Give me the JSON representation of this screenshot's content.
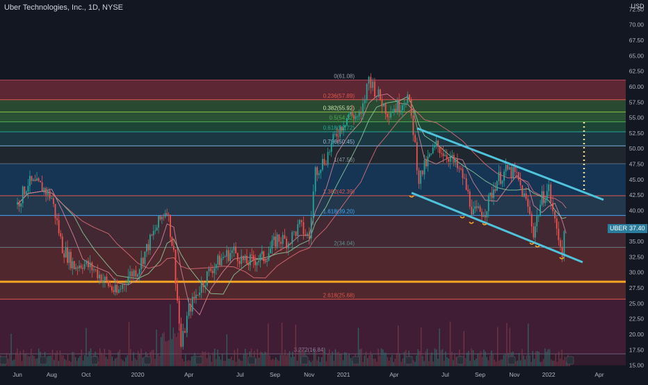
{
  "header": {
    "title": "Uber Technologies, Inc., 1D, NYSE",
    "currency": "USD"
  },
  "last_price": {
    "symbol": "UBER",
    "value": "37.40"
  },
  "colors": {
    "background": "#131722",
    "candle_up": "#26a69a",
    "candle_down": "#ef5350",
    "channel": "#4fc3dc",
    "support": "#f5a623"
  },
  "chart_data": {
    "type": "candlestick",
    "y_axis": {
      "ylim": [
        15.0,
        75.0
      ],
      "ticks": [
        "15.00",
        "17.50",
        "20.00",
        "22.50",
        "25.00",
        "27.50",
        "30.00",
        "32.50",
        "35.00",
        "37.50",
        "40.00",
        "42.50",
        "45.00",
        "47.50",
        "50.00",
        "52.50",
        "55.00",
        "57.50",
        "60.00",
        "62.50",
        "65.00",
        "67.50",
        "70.00",
        "72.50"
      ]
    },
    "x_axis": {
      "ticks": [
        {
          "label": "Jun",
          "date": "2019-06-01"
        },
        {
          "label": "Aug",
          "date": "2019-08-01"
        },
        {
          "label": "Oct",
          "date": "2019-10-01"
        },
        {
          "label": "2020",
          "date": "2020-01-01"
        },
        {
          "label": "Apr",
          "date": "2020-04-01"
        },
        {
          "label": "Jul",
          "date": "2020-07-01"
        },
        {
          "label": "Sep",
          "date": "2020-09-01"
        },
        {
          "label": "Nov",
          "date": "2020-11-01"
        },
        {
          "label": "2021",
          "date": "2021-01-01"
        },
        {
          "label": "Apr",
          "date": "2021-04-01"
        },
        {
          "label": "Jul",
          "date": "2021-07-01"
        },
        {
          "label": "Sep",
          "date": "2021-09-01"
        },
        {
          "label": "Nov",
          "date": "2021-11-01"
        },
        {
          "label": "2022",
          "date": "2022-01-01"
        },
        {
          "label": "Apr",
          "date": "2022-04-01"
        }
      ]
    },
    "fib_levels": [
      {
        "label": "0(61.08)",
        "value": 61.08,
        "line": "#b2455a",
        "fill": "#6b2a36",
        "label_color": "#9aa0ac"
      },
      {
        "label": "0.236(57.89)",
        "value": 57.89,
        "line": "#e0584d",
        "fill": "#2e5233",
        "label_color": "#e0584d"
      },
      {
        "label": "0.382(55.92)",
        "value": 55.92,
        "line": "#8bc34a",
        "fill": "#2f5b38",
        "label_color": "#cfe8b0"
      },
      {
        "label": "0.5(54.32)",
        "value": 54.32,
        "line": "#4caf50",
        "fill": "#1f4d3a",
        "label_color": "#4caf50"
      },
      {
        "label": "0.618(52.72)",
        "value": 52.72,
        "line": "#26a69a",
        "fill": "#1d3d46",
        "label_color": "#26a69a"
      },
      {
        "label": "0.786(50.45)",
        "value": 50.45,
        "line": "#7fb0e0",
        "fill": "#22292f",
        "label_color": "#9ab8da"
      },
      {
        "label": "1(47.56)",
        "value": 47.56,
        "line": "#5f6b7a",
        "fill": "#173a5c",
        "label_color": "#8a93a3"
      },
      {
        "label": "1.382(42.39)",
        "value": 42.39,
        "line": "#e0584d",
        "fill": "#283e55",
        "label_color": "#e0584d"
      },
      {
        "label": "1.618(39.20)",
        "value": 39.2,
        "line": "#42a5f5",
        "fill": "#4a2b35",
        "label_color": "#42a5f5"
      },
      {
        "label": "2(34.04)",
        "value": 34.04,
        "line": "#6a7a82",
        "fill": "#5c2a2e",
        "label_color": "#5f8f8a"
      },
      {
        "label": "2.618(25.68)",
        "value": 25.68,
        "line": "#e0584d",
        "fill": "#4a1f38",
        "label_color": "#e0584d"
      },
      {
        "label": "3.272(16.84)",
        "value": 16.84,
        "line": "#6a5a7a",
        "fill": "#3a1c30",
        "label_color": "#8a7a9a"
      }
    ],
    "support_line": {
      "value": 28.5
    },
    "series": [
      {
        "name": "price",
        "points": [
          [
            "2019-06-01",
            41.0
          ],
          [
            "2019-06-20",
            44.5
          ],
          [
            "2019-07-15",
            43.8
          ],
          [
            "2019-08-01",
            42.0
          ],
          [
            "2019-08-20",
            34.0
          ],
          [
            "2019-09-10",
            31.0
          ],
          [
            "2019-09-25",
            31.5
          ],
          [
            "2019-10-15",
            30.5
          ],
          [
            "2019-11-10",
            28.0
          ],
          [
            "2019-11-25",
            26.5
          ],
          [
            "2019-12-15",
            29.5
          ],
          [
            "2020-01-01",
            30.5
          ],
          [
            "2020-01-20",
            34.5
          ],
          [
            "2020-02-10",
            38.5
          ],
          [
            "2020-02-22",
            40.5
          ],
          [
            "2020-03-05",
            33.0
          ],
          [
            "2020-03-18",
            18.0
          ],
          [
            "2020-04-01",
            24.0
          ],
          [
            "2020-04-20",
            27.5
          ],
          [
            "2020-05-10",
            30.5
          ],
          [
            "2020-06-01",
            32.5
          ],
          [
            "2020-06-20",
            33.5
          ],
          [
            "2020-07-10",
            31.5
          ],
          [
            "2020-07-25",
            32.0
          ],
          [
            "2020-08-15",
            32.5
          ],
          [
            "2020-09-05",
            35.5
          ],
          [
            "2020-09-25",
            35.0
          ],
          [
            "2020-10-15",
            37.5
          ],
          [
            "2020-11-01",
            35.5
          ],
          [
            "2020-11-12",
            46.5
          ],
          [
            "2020-12-01",
            48.5
          ],
          [
            "2020-12-20",
            52.5
          ],
          [
            "2021-01-10",
            55.5
          ],
          [
            "2021-02-01",
            55.0
          ],
          [
            "2021-02-15",
            61.5
          ],
          [
            "2021-03-01",
            59.0
          ],
          [
            "2021-03-20",
            56.0
          ],
          [
            "2021-04-10",
            57.0
          ],
          [
            "2021-04-25",
            58.5
          ],
          [
            "2021-05-05",
            53.0
          ],
          [
            "2021-05-15",
            45.0
          ],
          [
            "2021-05-25",
            47.0
          ],
          [
            "2021-06-15",
            50.5
          ],
          [
            "2021-07-10",
            48.5
          ],
          [
            "2021-08-01",
            45.5
          ],
          [
            "2021-08-20",
            39.5
          ],
          [
            "2021-09-10",
            40.0
          ],
          [
            "2021-10-01",
            45.0
          ],
          [
            "2021-10-20",
            46.5
          ],
          [
            "2021-11-05",
            45.5
          ],
          [
            "2021-11-25",
            40.5
          ],
          [
            "2021-12-05",
            36.5
          ],
          [
            "2021-12-20",
            42.0
          ],
          [
            "2022-01-01",
            43.5
          ],
          [
            "2022-01-12",
            38.0
          ],
          [
            "2022-01-25",
            33.5
          ],
          [
            "2022-02-01",
            37.4
          ]
        ]
      }
    ],
    "channel": {
      "upper": [
        [
          "2021-05-01",
          54.0
        ],
        [
          "2022-03-01",
          42.0
        ]
      ],
      "lower": [
        [
          "2021-04-25",
          43.2
        ],
        [
          "2022-02-25",
          31.5
        ]
      ]
    }
  }
}
